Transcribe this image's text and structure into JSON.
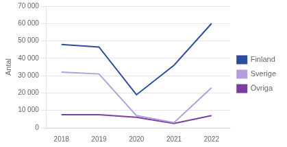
{
  "chart_data": {
    "type": "line",
    "ylabel": "Antal",
    "x": [
      2018,
      2019,
      2020,
      2021,
      2022
    ],
    "xlim": [
      2017.6,
      2022.5
    ],
    "xticks": [
      2018,
      2019,
      2020,
      2021,
      2022
    ],
    "series": [
      {
        "name": "Finland",
        "color": "#2e4da0",
        "values": [
          48000,
          46500,
          19000,
          36000,
          60000
        ]
      },
      {
        "name": "Sverige",
        "color": "#b39ddb",
        "values": [
          32000,
          31000,
          7000,
          3000,
          23000
        ]
      },
      {
        "name": "Övriga",
        "color": "#7b3fa0",
        "values": [
          7500,
          7500,
          6000,
          2500,
          7000
        ]
      }
    ],
    "ylim": [
      0,
      70000
    ],
    "yticks": [
      0,
      {
        "value": 10000,
        "label": "10 000"
      },
      {
        "value": 20000,
        "label": "20 000"
      },
      {
        "value": 30000,
        "label": "30 000"
      },
      {
        "value": 40000,
        "label": "40 000"
      },
      {
        "value": 50000,
        "label": "50 000"
      },
      {
        "value": 60000,
        "label": "60 000"
      },
      {
        "value": 70000,
        "label": "70 000"
      }
    ],
    "grid": "y",
    "legend": "right"
  }
}
